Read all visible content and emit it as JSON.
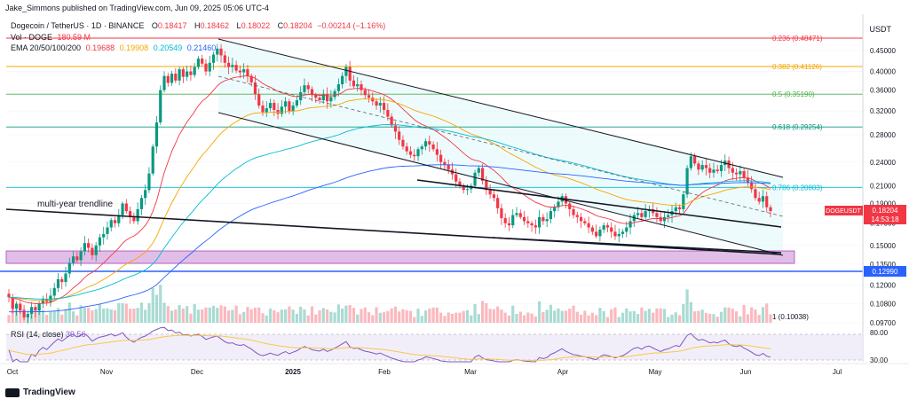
{
  "publisher_line": "Jake_Simmons published on TradingView.com, Jun 09, 2025 05:06 UTC-4",
  "symbol": {
    "name": "Dogecoin / TetherUS · 1D · BINANCE",
    "open_label": "O",
    "open": "0.18417",
    "high_label": "H",
    "high": "0.18462",
    "low_label": "L",
    "low": "0.18022",
    "close_label": "C",
    "close": "0.18204",
    "change": "−0.00214 (−1.16%)"
  },
  "volume": {
    "label": "Vol · DOGE",
    "value": "180.59 M"
  },
  "ema": {
    "label": "EMA 20/50/100/200",
    "values": [
      "0.19688",
      "0.19908",
      "0.20549",
      "0.21460"
    ]
  },
  "currency": "USDT",
  "price_tag": {
    "symbol": "DOGEUSDT",
    "price": "0.18204",
    "countdown": "14:53:18"
  },
  "rsi": {
    "label": "RSI (14, close)",
    "value": "39.56",
    "levels": [
      "80.00",
      "30.00"
    ]
  },
  "branding": "TradingView",
  "colors": {
    "up": "#089981",
    "down": "#f23645",
    "ema20": "#f23645",
    "ema50": "#f7a600",
    "ema100": "#00bcd4",
    "ema200": "#2962ff",
    "support": "#2962ff",
    "zone": "#ce93d8",
    "channel": "#e0f7fa",
    "rsi": "#7e57c2"
  },
  "chart_data": {
    "type": "candlestick",
    "price_axis_ticks": [
      0.45,
      0.4,
      0.36,
      0.32,
      0.28,
      0.24,
      0.21,
      0.19,
      0.17,
      0.15,
      0.135,
      0.12,
      0.108,
      0.097
    ],
    "price_axis_tick_labels": [
      "0.45000",
      "0.40000",
      "0.36000",
      "0.32000",
      "0.28000",
      "0.24000",
      "0.21000",
      "0.19000",
      "0.17000",
      "0.15000",
      "0.13500",
      "0.12000",
      "0.10800",
      "0.09700"
    ],
    "time_axis_labels": [
      "Oct",
      "Nov",
      "Dec",
      "2025",
      "Feb",
      "Mar",
      "Apr",
      "May",
      "Jun",
      "Jul"
    ],
    "fibonacci_levels": [
      {
        "label": "0.236",
        "price": 0.48471,
        "color": "#f23645"
      },
      {
        "label": "0.382",
        "price": 0.41126,
        "color": "#f7a600"
      },
      {
        "label": "0.5",
        "price": 0.3519,
        "color": "#4caf50"
      },
      {
        "label": "0.618",
        "price": 0.29254,
        "color": "#089981"
      },
      {
        "label": "0.786",
        "price": 0.20803,
        "color": "#00bcd4"
      },
      {
        "label": "1",
        "price": 0.10038,
        "color": "#787b86"
      }
    ],
    "support_level": 0.1299,
    "annotations": [
      "multi-year trendline"
    ],
    "closes": [
      0.112,
      0.105,
      0.108,
      0.104,
      0.1,
      0.102,
      0.106,
      0.104,
      0.108,
      0.111,
      0.109,
      0.113,
      0.118,
      0.124,
      0.122,
      0.128,
      0.136,
      0.141,
      0.138,
      0.145,
      0.152,
      0.148,
      0.142,
      0.15,
      0.157,
      0.16,
      0.166,
      0.173,
      0.17,
      0.178,
      0.19,
      0.182,
      0.176,
      0.172,
      0.184,
      0.196,
      0.205,
      0.225,
      0.262,
      0.3,
      0.36,
      0.39,
      0.375,
      0.395,
      0.38,
      0.405,
      0.388,
      0.4,
      0.392,
      0.41,
      0.43,
      0.418,
      0.4,
      0.42,
      0.44,
      0.455,
      0.438,
      0.42,
      0.41,
      0.415,
      0.402,
      0.398,
      0.405,
      0.39,
      0.376,
      0.352,
      0.33,
      0.318,
      0.325,
      0.335,
      0.322,
      0.315,
      0.328,
      0.338,
      0.32,
      0.33,
      0.34,
      0.356,
      0.37,
      0.362,
      0.35,
      0.345,
      0.34,
      0.352,
      0.338,
      0.346,
      0.358,
      0.372,
      0.39,
      0.41,
      0.38,
      0.368,
      0.372,
      0.36,
      0.35,
      0.345,
      0.338,
      0.33,
      0.335,
      0.322,
      0.31,
      0.295,
      0.285,
      0.272,
      0.262,
      0.255,
      0.25,
      0.248,
      0.258,
      0.262,
      0.27,
      0.265,
      0.258,
      0.25,
      0.24,
      0.236,
      0.23,
      0.224,
      0.215,
      0.21,
      0.205,
      0.206,
      0.21,
      0.226,
      0.232,
      0.216,
      0.205,
      0.2,
      0.196,
      0.185,
      0.175,
      0.17,
      0.168,
      0.178,
      0.18,
      0.176,
      0.172,
      0.17,
      0.168,
      0.166,
      0.176,
      0.172,
      0.174,
      0.182,
      0.186,
      0.192,
      0.198,
      0.19,
      0.184,
      0.178,
      0.176,
      0.172,
      0.17,
      0.166,
      0.162,
      0.158,
      0.164,
      0.168,
      0.166,
      0.162,
      0.158,
      0.16,
      0.162,
      0.166,
      0.172,
      0.178,
      0.18,
      0.176,
      0.182,
      0.184,
      0.18,
      0.176,
      0.172,
      0.176,
      0.178,
      0.182,
      0.186,
      0.184,
      0.2,
      0.232,
      0.248,
      0.238,
      0.23,
      0.236,
      0.232,
      0.226,
      0.23,
      0.228,
      0.236,
      0.242,
      0.232,
      0.226,
      0.224,
      0.228,
      0.22,
      0.214,
      0.206,
      0.196,
      0.192,
      0.198,
      0.186,
      0.182
    ]
  }
}
